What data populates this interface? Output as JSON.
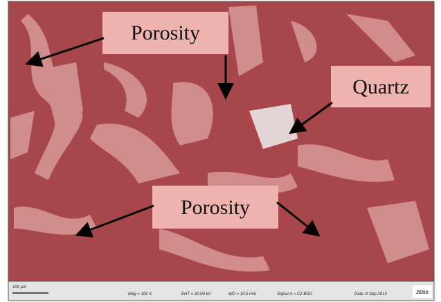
{
  "annotations": [
    {
      "label": "Porosity"
    },
    {
      "label": "Quartz"
    },
    {
      "label": "Porosity"
    }
  ],
  "info_bar": {
    "scale": "100 µm",
    "mag": "Mag =  100 X",
    "eht": "EHT = 20.00 kV",
    "wd": "WD = 10.5 mm",
    "signal": "Signal A = CZ BSD",
    "date": "Date :9 Sep 2013",
    "brand": "ZEISS"
  }
}
